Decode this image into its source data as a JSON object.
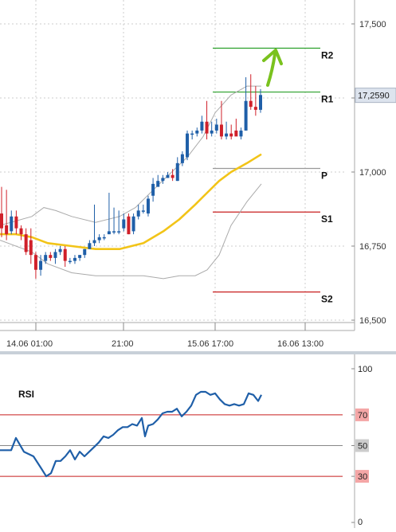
{
  "chart_data": [
    {
      "type": "candlestick",
      "title": "",
      "xlabel": "",
      "ylabel": "",
      "ylim": [
        16.5,
        17.6
      ],
      "y_ticks": [
        16.5,
        16.75,
        17.0,
        17.25,
        17.5
      ],
      "y_tick_labels": [
        "16,500",
        "16,750",
        "17,000",
        "17,250",
        "17,500"
      ],
      "x_tick_labels": [
        "14.06 01:00",
        "21:00",
        "15.06 17:00",
        "16.06 13:00"
      ],
      "last_price": 17.259,
      "last_price_label": "17,2590",
      "grid": true,
      "pivot_levels": [
        {
          "name": "R2",
          "value": 17.418,
          "color": "#2aa02a"
        },
        {
          "name": "R1",
          "value": 17.27,
          "color": "#2aa02a"
        },
        {
          "name": "P",
          "value": 17.012,
          "color": "#999999"
        },
        {
          "name": "S1",
          "value": 16.865,
          "color": "#c81e1e"
        },
        {
          "name": "S2",
          "value": 16.595,
          "color": "#c81e1e"
        }
      ],
      "candles": [
        [
          16.95,
          16.86,
          16.78,
          16.81
        ],
        [
          16.94,
          16.82,
          16.77,
          16.79
        ],
        [
          16.87,
          16.8,
          16.79,
          16.85
        ],
        [
          16.87,
          16.85,
          16.79,
          16.81
        ],
        [
          16.82,
          16.81,
          16.77,
          16.79
        ],
        [
          16.81,
          16.79,
          16.72,
          16.73
        ],
        [
          16.81,
          16.77,
          16.69,
          16.72
        ],
        [
          16.73,
          16.72,
          16.64,
          16.67
        ],
        [
          16.72,
          16.67,
          16.65,
          16.7
        ],
        [
          16.73,
          16.7,
          16.69,
          16.72
        ],
        [
          16.73,
          16.72,
          16.7,
          16.71
        ],
        [
          16.74,
          16.71,
          16.69,
          16.73
        ],
        [
          16.75,
          16.73,
          16.72,
          16.74
        ],
        [
          16.75,
          16.74,
          16.68,
          16.7
        ],
        [
          16.71,
          16.7,
          16.69,
          16.7
        ],
        [
          16.72,
          16.7,
          16.69,
          16.71
        ],
        [
          16.72,
          16.71,
          16.7,
          16.72
        ],
        [
          16.74,
          16.72,
          16.71,
          16.74
        ],
        [
          16.77,
          16.74,
          16.74,
          16.76
        ],
        [
          16.89,
          16.76,
          16.75,
          16.77
        ],
        [
          16.79,
          16.77,
          16.76,
          16.78
        ],
        [
          16.79,
          16.78,
          16.77,
          16.78
        ],
        [
          16.93,
          16.79,
          16.79,
          16.8
        ],
        [
          16.88,
          16.8,
          16.79,
          16.8
        ],
        [
          16.87,
          16.8,
          16.79,
          16.8
        ],
        [
          16.86,
          16.81,
          16.8,
          16.84
        ],
        [
          16.86,
          16.85,
          16.79,
          16.79
        ],
        [
          16.86,
          16.8,
          16.79,
          16.85
        ],
        [
          16.89,
          16.85,
          16.84,
          16.87
        ],
        [
          16.89,
          16.87,
          16.86,
          16.87
        ],
        [
          16.92,
          16.86,
          16.85,
          16.91
        ],
        [
          16.98,
          16.92,
          16.9,
          16.96
        ],
        [
          16.99,
          16.95,
          16.95,
          16.97
        ],
        [
          16.99,
          16.97,
          16.96,
          16.98
        ],
        [
          17.0,
          16.98,
          16.98,
          16.99
        ],
        [
          17.01,
          16.99,
          16.97,
          16.98
        ],
        [
          17.05,
          16.97,
          16.97,
          17.03
        ],
        [
          17.07,
          17.03,
          17.02,
          17.06
        ],
        [
          17.14,
          17.05,
          17.04,
          17.13
        ],
        [
          17.14,
          17.13,
          17.11,
          17.13
        ],
        [
          17.15,
          17.13,
          17.12,
          17.14
        ],
        [
          17.19,
          17.14,
          17.13,
          17.17
        ],
        [
          17.24,
          17.17,
          17.11,
          17.13
        ],
        [
          17.17,
          17.13,
          17.12,
          17.14
        ],
        [
          17.18,
          17.14,
          17.13,
          17.16
        ],
        [
          17.24,
          17.16,
          17.11,
          17.12
        ],
        [
          17.17,
          17.12,
          17.11,
          17.13
        ],
        [
          17.16,
          17.13,
          17.11,
          17.12
        ],
        [
          17.18,
          17.14,
          17.13,
          17.12
        ],
        [
          17.15,
          17.12,
          17.11,
          17.14
        ],
        [
          17.32,
          17.14,
          17.14,
          17.24
        ],
        [
          17.33,
          17.24,
          17.21,
          17.22
        ],
        [
          17.29,
          17.22,
          17.19,
          17.21
        ],
        [
          17.28,
          17.21,
          17.2,
          17.26
        ]
      ],
      "bollinger_upper": [
        [
          0,
          16.82
        ],
        [
          40,
          16.85
        ],
        [
          55,
          16.88
        ],
        [
          70,
          16.87
        ],
        [
          90,
          16.85
        ],
        [
          120,
          16.83
        ],
        [
          150,
          16.85
        ],
        [
          170,
          16.88
        ],
        [
          200,
          16.96
        ],
        [
          235,
          17.05
        ],
        [
          255,
          17.12
        ],
        [
          270,
          17.2
        ],
        [
          290,
          17.26
        ],
        [
          310,
          17.29
        ],
        [
          328,
          17.29
        ]
      ],
      "bollinger_lower": [
        [
          0,
          16.77
        ],
        [
          40,
          16.73
        ],
        [
          60,
          16.69
        ],
        [
          90,
          16.66
        ],
        [
          120,
          16.65
        ],
        [
          150,
          16.65
        ],
        [
          180,
          16.65
        ],
        [
          205,
          16.64
        ],
        [
          225,
          16.65
        ],
        [
          245,
          16.65
        ],
        [
          260,
          16.67
        ],
        [
          275,
          16.72
        ],
        [
          290,
          16.82
        ],
        [
          310,
          16.9
        ],
        [
          328,
          16.96
        ]
      ],
      "moving_average": [
        [
          0,
          16.79
        ],
        [
          20,
          16.79
        ],
        [
          40,
          16.78
        ],
        [
          60,
          16.76
        ],
        [
          90,
          16.75
        ],
        [
          120,
          16.74
        ],
        [
          150,
          16.74
        ],
        [
          180,
          16.76
        ],
        [
          205,
          16.8
        ],
        [
          225,
          16.84
        ],
        [
          245,
          16.89
        ],
        [
          260,
          16.93
        ],
        [
          275,
          16.97
        ],
        [
          290,
          17.0
        ],
        [
          310,
          17.03
        ],
        [
          328,
          17.06
        ]
      ]
    },
    {
      "type": "line",
      "title": "RSI",
      "xlabel": "",
      "ylabel": "",
      "ylim": [
        0,
        100
      ],
      "y_ticks": [
        0,
        30,
        50,
        70,
        100
      ],
      "y_tick_labels": [
        "0",
        "30",
        "50",
        "70",
        "100"
      ],
      "reference_levels": [
        {
          "value": 70,
          "color": "#c81e1e",
          "label_bg": "#f4a6a6"
        },
        {
          "value": 50,
          "color": "#888888",
          "label_bg": "#cccccc"
        },
        {
          "value": 30,
          "color": "#c81e1e",
          "label_bg": "#f4a6a6"
        }
      ],
      "series": [
        {
          "color": "#1f5fa8",
          "points": [
            [
              0,
              47
            ],
            [
              14,
              47
            ],
            [
              20,
              55
            ],
            [
              30,
              46
            ],
            [
              42,
              43
            ],
            [
              52,
              35
            ],
            [
              58,
              30
            ],
            [
              64,
              32
            ],
            [
              70,
              40
            ],
            [
              76,
              40
            ],
            [
              82,
              43
            ],
            [
              88,
              47
            ],
            [
              94,
              41
            ],
            [
              100,
              46
            ],
            [
              106,
              43
            ],
            [
              112,
              46
            ],
            [
              118,
              49
            ],
            [
              124,
              52
            ],
            [
              130,
              56
            ],
            [
              136,
              55
            ],
            [
              142,
              57
            ],
            [
              148,
              60
            ],
            [
              154,
              62
            ],
            [
              160,
              62
            ],
            [
              166,
              64
            ],
            [
              172,
              63
            ],
            [
              178,
              68
            ],
            [
              182,
              56
            ],
            [
              186,
              63
            ],
            [
              192,
              64
            ],
            [
              198,
              67
            ],
            [
              204,
              71
            ],
            [
              210,
              72
            ],
            [
              216,
              72
            ],
            [
              222,
              74
            ],
            [
              228,
              69
            ],
            [
              234,
              72
            ],
            [
              240,
              76
            ],
            [
              246,
              83
            ],
            [
              252,
              85
            ],
            [
              258,
              85
            ],
            [
              264,
              83
            ],
            [
              270,
              84
            ],
            [
              276,
              80
            ],
            [
              282,
              77
            ],
            [
              288,
              76
            ],
            [
              294,
              77
            ],
            [
              300,
              76
            ],
            [
              306,
              77
            ],
            [
              312,
              84
            ],
            [
              318,
              83
            ],
            [
              324,
              79
            ],
            [
              328,
              83
            ]
          ]
        }
      ]
    }
  ]
}
